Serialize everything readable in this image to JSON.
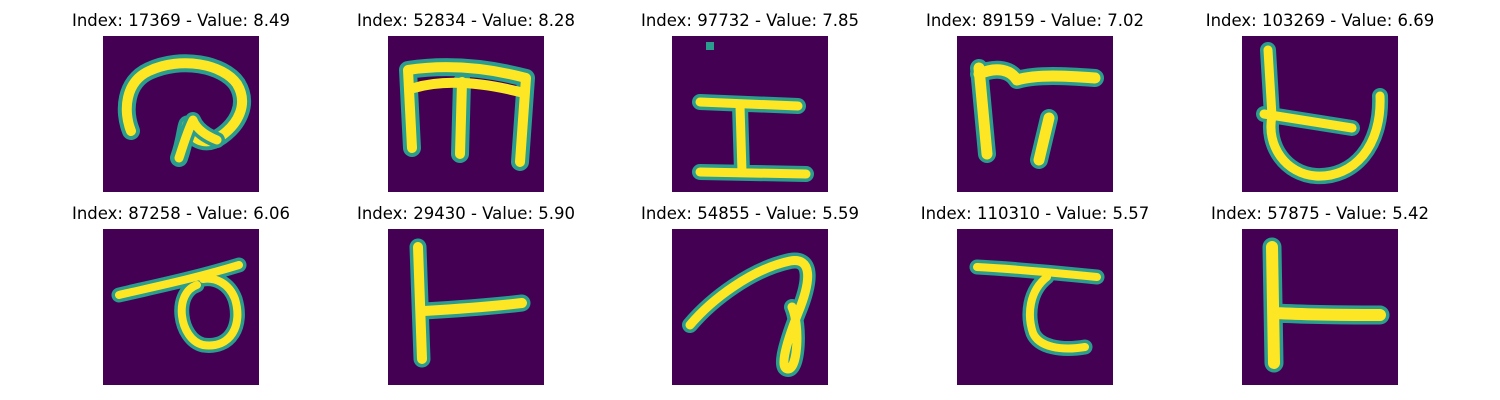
{
  "figure": {
    "colors": {
      "background": "#440154",
      "stroke_core": "#fde725",
      "stroke_edge": "#2a9d8f"
    },
    "panels": [
      {
        "title": "Index: 17369 - Value: 8.49",
        "glyph": "curl-p-glyph"
      },
      {
        "title": "Index: 52834 - Value: 8.28",
        "glyph": "m-shape-glyph"
      },
      {
        "title": "Index: 97732 - Value: 7.85",
        "glyph": "i-beam-glyph"
      },
      {
        "title": "Index: 89159 - Value: 7.02",
        "glyph": "pi-like-glyph"
      },
      {
        "title": "Index: 103269 - Value: 6.69",
        "glyph": "crossed-loop-glyph"
      },
      {
        "title": "Index: 87258 - Value: 6.06",
        "glyph": "flag-loop-glyph"
      },
      {
        "title": "Index: 29430 - Value: 5.90",
        "glyph": "t-rotated-glyph"
      },
      {
        "title": "Index: 54855 - Value: 5.59",
        "glyph": "slanted-loop-glyph"
      },
      {
        "title": "Index: 110310 - Value: 5.57",
        "glyph": "hook-glyph"
      },
      {
        "title": "Index: 57875 - Value: 5.42",
        "glyph": "t-rotated-wide-glyph"
      }
    ]
  }
}
